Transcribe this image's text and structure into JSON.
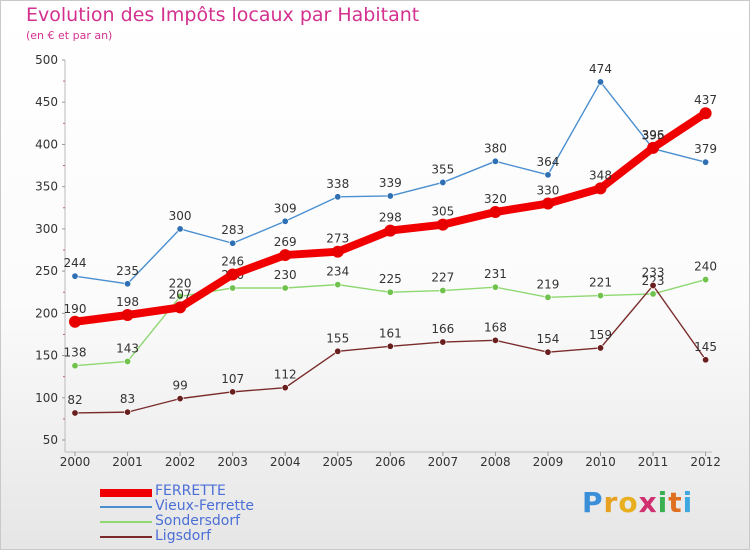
{
  "header": {
    "title": "Evolution des Impôts locaux par Habitant",
    "subtitle": "(en € et par an)"
  },
  "chart_data": {
    "type": "line",
    "title": "Evolution des Impôts locaux par Habitant",
    "subtitle": "(en € et par an)",
    "xlabel": "",
    "ylabel": "",
    "x": [
      "2000",
      "2001",
      "2002",
      "2003",
      "2004",
      "2005",
      "2006",
      "2007",
      "2008",
      "2009",
      "2010",
      "2011",
      "2012"
    ],
    "ylim": [
      50,
      500
    ],
    "yticks": [
      50,
      100,
      150,
      200,
      250,
      300,
      350,
      400,
      450,
      500
    ],
    "grid": false,
    "legend_position": "bottom-left",
    "series": [
      {
        "name": "Vieux-Ferrette",
        "color": "#4a8fd0",
        "marker": "#2f6fb4",
        "values": [
          244,
          235,
          300,
          283,
          309,
          338,
          339,
          355,
          380,
          364,
          474,
          395,
          379
        ]
      },
      {
        "name": "Sondersdorf",
        "color": "#8fd872",
        "marker": "#6fc24c",
        "values": [
          138,
          143,
          220,
          230,
          230,
          234,
          225,
          227,
          231,
          219,
          221,
          223,
          240
        ]
      },
      {
        "name": "Ligsdorf",
        "color": "#7a2c2c",
        "marker": "#6a1f1f",
        "values": [
          82,
          83,
          99,
          107,
          112,
          155,
          161,
          166,
          168,
          154,
          159,
          233,
          145
        ]
      },
      {
        "name": "FERRETTE",
        "color": "#f00000",
        "marker": "#e80000",
        "values": [
          190,
          198,
          207,
          246,
          269,
          273,
          298,
          305,
          320,
          330,
          348,
          396,
          437
        ]
      }
    ]
  },
  "legend": {
    "items": [
      {
        "label": "FERRETTE",
        "color": "#f00000"
      },
      {
        "label": "Vieux-Ferrette",
        "color": "#4a8fd0"
      },
      {
        "label": "Sondersdorf",
        "color": "#8fd872"
      },
      {
        "label": "Ligsdorf",
        "color": "#7a2c2c"
      }
    ]
  },
  "logo": {
    "letters": [
      "P",
      "r",
      "o",
      "x",
      "i",
      "t",
      "i"
    ],
    "colors": [
      "#3a8fd8",
      "#e8a020",
      "#e8b020",
      "#d03070",
      "#3ab050",
      "#e07020",
      "#40a8e0"
    ]
  }
}
